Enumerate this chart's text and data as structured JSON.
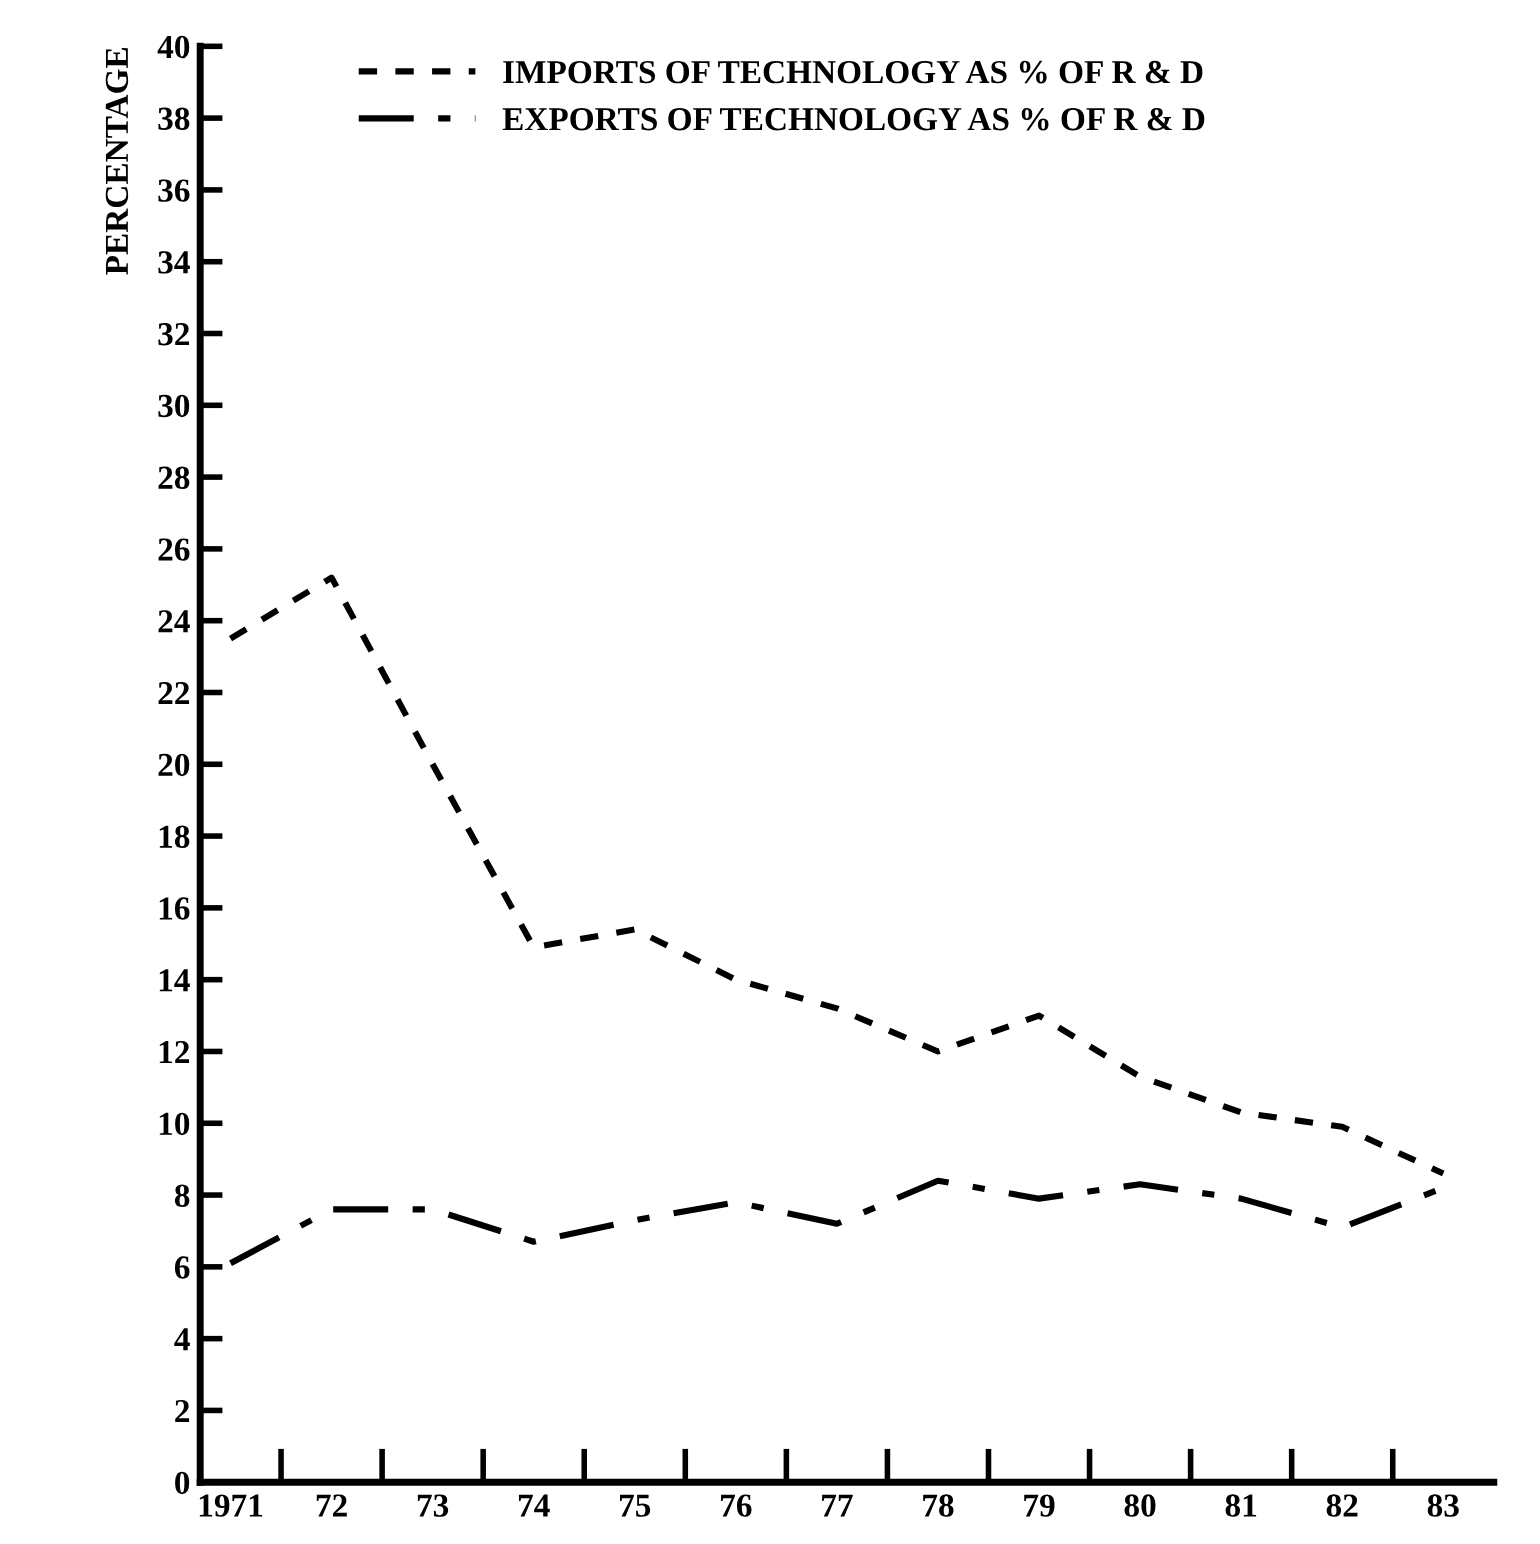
{
  "chart_data": {
    "type": "line",
    "ylabel": "PERCENTAGE",
    "categories": [
      "1971",
      "72",
      "73",
      "74",
      "75",
      "76",
      "77",
      "78",
      "79",
      "80",
      "81",
      "82",
      "83"
    ],
    "series": [
      {
        "name": "IMPORTS OF TECHNOLOGY AS % OF R & D",
        "color": "#000000",
        "line_style": "dotted",
        "values": [
          23.5,
          25.2,
          20.0,
          14.9,
          15.4,
          14.0,
          13.2,
          12.0,
          13.0,
          11.3,
          10.3,
          9.9,
          8.6
        ]
      },
      {
        "name": "EXPORTS OF TECHNOLOGY AS % OF R & D",
        "color": "#000000",
        "line_style": "dashed",
        "values": [
          6.1,
          7.6,
          7.6,
          6.7,
          7.3,
          7.8,
          7.2,
          8.4,
          7.9,
          8.3,
          7.9,
          7.1,
          8.2
        ]
      }
    ],
    "ylim": [
      0,
      40
    ],
    "yticks": [
      0,
      2,
      4,
      6,
      8,
      10,
      12,
      14,
      16,
      18,
      20,
      22,
      24,
      26,
      28,
      30,
      32,
      34,
      36,
      38,
      40
    ],
    "grid": false,
    "legend": "top",
    "marker": "none"
  }
}
